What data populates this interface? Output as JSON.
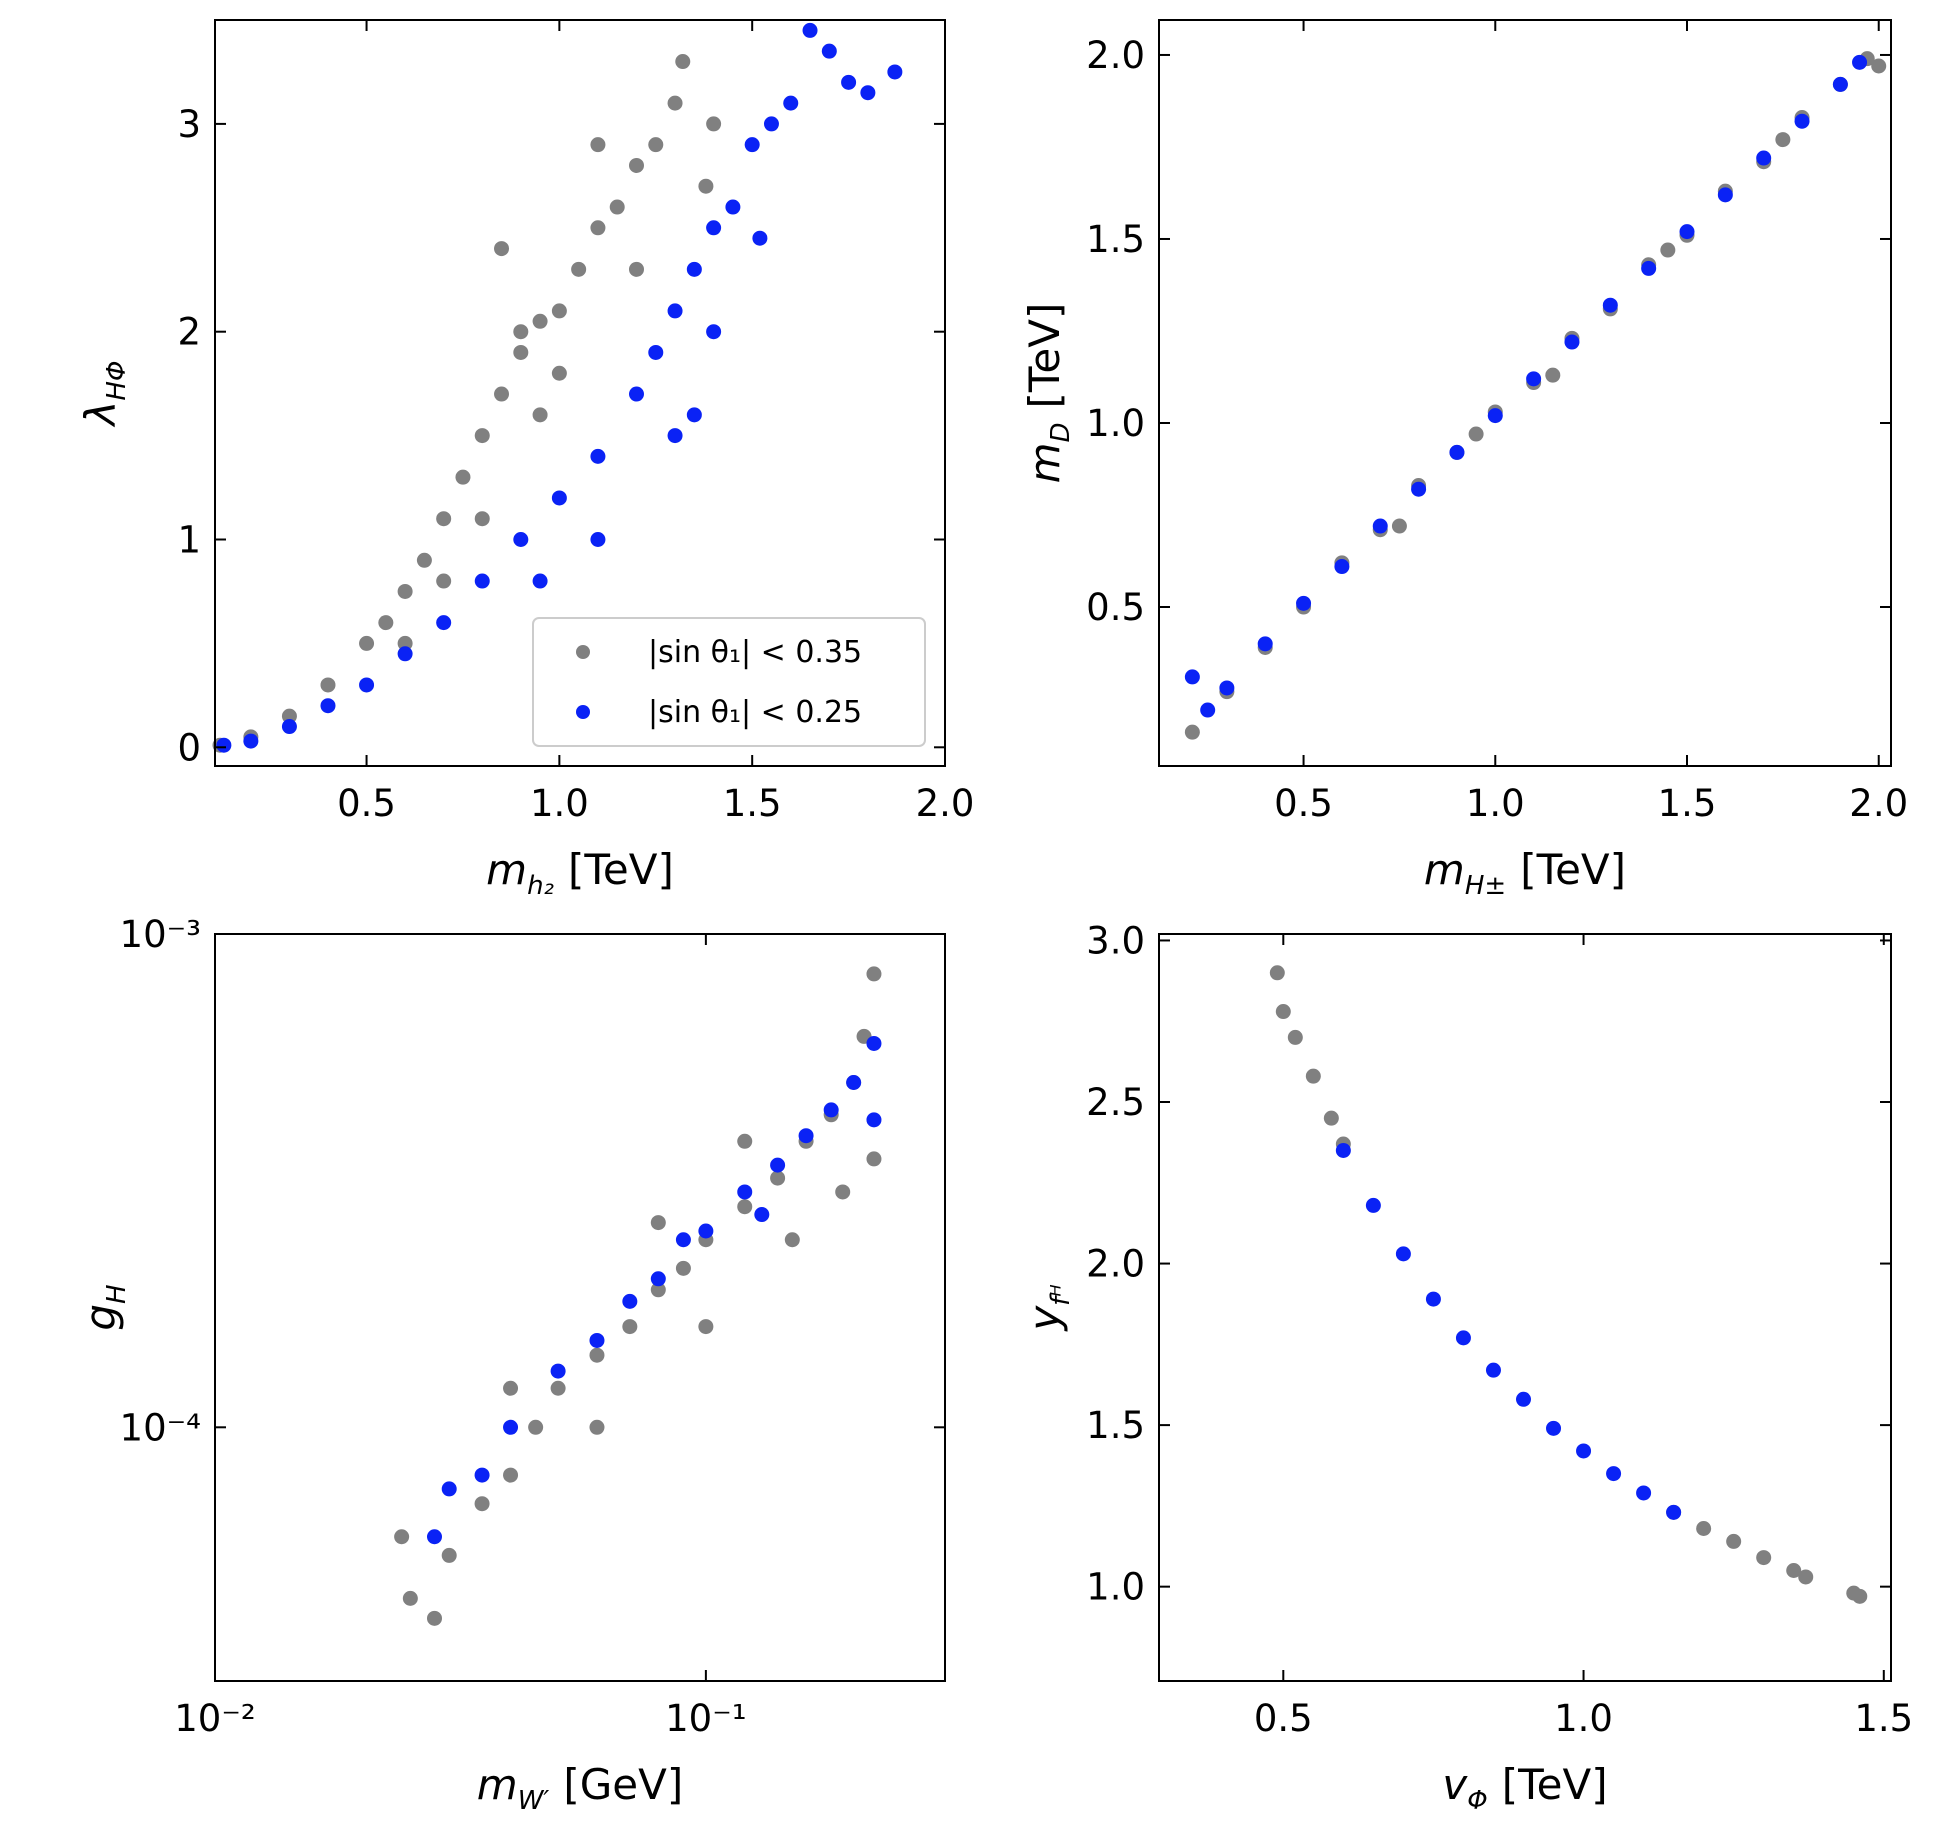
{
  "chart_data": [
    {
      "type": "scatter",
      "xlabel": {
        "text": "m",
        "sub": "h₂",
        "unit": "[TeV]"
      },
      "ylabel": {
        "text": "λ",
        "sub": "HΦ",
        "unit": ""
      },
      "xlim": [
        0.107,
        2.0
      ],
      "ylim": [
        -0.09,
        3.5
      ],
      "xticks": [
        0.5,
        {
          "value": 1,
          "label": "1.0"
        },
        1.5,
        {
          "value": 2,
          "label": "2.0"
        }
      ],
      "yticks": [
        0,
        1,
        2,
        3
      ],
      "legend": "lower right",
      "series": [
        {
          "name": "|sin θ₁| < 0.35",
          "color": "#808080",
          "x": [
            0.12,
            0.2,
            0.3,
            0.4,
            0.5,
            0.55,
            0.6,
            0.65,
            0.7,
            0.75,
            0.8,
            0.85,
            0.9,
            0.95,
            1.0,
            1.05,
            1.1,
            1.15,
            1.2,
            1.25,
            1.3,
            1.32,
            0.85,
            0.9,
            1.1,
            0.7,
            0.8,
            0.95,
            1.0,
            1.2,
            0.6,
            1.4,
            1.38
          ],
          "y": [
            0.01,
            0.05,
            0.15,
            0.3,
            0.5,
            0.6,
            0.75,
            0.9,
            1.1,
            1.3,
            1.5,
            1.7,
            1.9,
            2.05,
            2.1,
            2.3,
            2.5,
            2.6,
            2.8,
            2.9,
            3.1,
            3.3,
            2.4,
            2.0,
            2.9,
            0.8,
            1.1,
            1.6,
            1.8,
            2.3,
            0.5,
            3.0,
            2.7
          ]
        },
        {
          "name": "|sin θ₁| < 0.25",
          "color": "#0a22f5",
          "x": [
            0.13,
            0.2,
            0.3,
            0.4,
            0.5,
            0.6,
            0.7,
            0.8,
            0.9,
            1.0,
            1.1,
            1.2,
            1.25,
            1.3,
            1.35,
            1.4,
            1.45,
            1.5,
            1.55,
            1.6,
            1.65,
            1.7,
            1.75,
            1.8,
            1.87,
            1.4,
            1.3,
            1.1,
            0.95,
            1.52,
            1.35
          ],
          "y": [
            0.01,
            0.03,
            0.1,
            0.2,
            0.3,
            0.45,
            0.6,
            0.8,
            1.0,
            1.2,
            1.4,
            1.7,
            1.9,
            2.1,
            2.3,
            2.5,
            2.6,
            2.9,
            3.0,
            3.1,
            3.45,
            3.35,
            3.2,
            3.15,
            3.25,
            2.0,
            1.5,
            1.0,
            0.8,
            2.45,
            1.6
          ]
        }
      ]
    },
    {
      "type": "scatter",
      "xlabel": {
        "text": "m",
        "sub": "H±",
        "unit": "[TeV]"
      },
      "ylabel": {
        "text": "m",
        "sub": "D",
        "unit": "[TeV]"
      },
      "xlim": [
        0.123,
        2.032
      ],
      "ylim": [
        0.068,
        2.095
      ],
      "xticks": [
        0.5,
        {
          "value": 1,
          "label": "1.0"
        },
        1.5,
        {
          "value": 2,
          "label": "2.0"
        }
      ],
      "yticks": [
        0.5,
        {
          "value": 1,
          "label": "1.0"
        },
        1.5,
        {
          "value": 2,
          "label": "2.0"
        }
      ],
      "series": [
        {
          "color": "#808080",
          "x": [
            0.21,
            0.3,
            0.4,
            0.5,
            0.6,
            0.7,
            0.8,
            0.9,
            1.0,
            1.1,
            1.2,
            1.3,
            1.4,
            1.5,
            1.6,
            1.7,
            1.8,
            1.9,
            1.97,
            2.0,
            0.75,
            0.95,
            1.15,
            1.45,
            1.75
          ],
          "y": [
            0.16,
            0.27,
            0.39,
            0.5,
            0.62,
            0.71,
            0.83,
            0.92,
            1.03,
            1.11,
            1.23,
            1.31,
            1.43,
            1.51,
            1.63,
            1.71,
            1.83,
            1.92,
            1.99,
            1.97,
            0.72,
            0.97,
            1.13,
            1.47,
            1.77
          ]
        },
        {
          "color": "#0a22f5",
          "x": [
            0.21,
            0.25,
            0.3,
            0.4,
            0.5,
            0.6,
            0.7,
            0.8,
            0.9,
            1.0,
            1.1,
            1.2,
            1.3,
            1.4,
            1.5,
            1.6,
            1.7,
            1.8,
            1.9,
            1.95
          ],
          "y": [
            0.31,
            0.22,
            0.28,
            0.4,
            0.51,
            0.61,
            0.72,
            0.82,
            0.92,
            1.02,
            1.12,
            1.22,
            1.32,
            1.42,
            1.52,
            1.62,
            1.72,
            1.82,
            1.92,
            1.98
          ]
        }
      ]
    },
    {
      "type": "scatter",
      "xscale": "log",
      "yscale": "log",
      "xlabel": {
        "text": "m",
        "sub": "W′",
        "unit": "[GeV]"
      },
      "ylabel": {
        "text": "g",
        "sub": "H",
        "unit": ""
      },
      "xlim": [
        0.01,
        0.307
      ],
      "ylim": [
        3.06e-05,
        0.001
      ],
      "xticks": [
        {
          "value": 0.01,
          "label": "10⁻²"
        },
        {
          "value": 0.1,
          "label": "10⁻¹"
        }
      ],
      "yticks": [
        {
          "value": 0.0001,
          "label": "10⁻⁴"
        },
        {
          "value": 0.001,
          "label": "10⁻³"
        }
      ],
      "series": [
        {
          "color": "#808080",
          "x": [
            0.024,
            0.025,
            0.028,
            0.03,
            0.035,
            0.04,
            0.045,
            0.05,
            0.06,
            0.07,
            0.08,
            0.09,
            0.1,
            0.12,
            0.14,
            0.16,
            0.18,
            0.2,
            0.21,
            0.22,
            0.22,
            0.15,
            0.1,
            0.06,
            0.08,
            0.12,
            0.04,
            0.19
          ],
          "y": [
            6e-05,
            4.5e-05,
            4.1e-05,
            5.5e-05,
            7e-05,
            8e-05,
            0.0001,
            0.00012,
            0.00014,
            0.00016,
            0.00019,
            0.00021,
            0.00024,
            0.00028,
            0.00032,
            0.00038,
            0.00043,
            0.0005,
            0.00062,
            0.00083,
            0.00035,
            0.00024,
            0.00016,
            0.0001,
            0.00026,
            0.00038,
            0.00012,
            0.0003
          ]
        },
        {
          "color": "#0a22f5",
          "x": [
            0.028,
            0.03,
            0.035,
            0.04,
            0.05,
            0.06,
            0.07,
            0.08,
            0.1,
            0.12,
            0.14,
            0.16,
            0.18,
            0.2,
            0.22,
            0.22,
            0.13,
            0.09
          ],
          "y": [
            6e-05,
            7.5e-05,
            8e-05,
            0.0001,
            0.00013,
            0.00015,
            0.00018,
            0.0002,
            0.00025,
            0.0003,
            0.00034,
            0.00039,
            0.00044,
            0.0005,
            0.0006,
            0.00042,
            0.00027,
            0.00024
          ]
        }
      ]
    },
    {
      "type": "scatter",
      "xlabel": {
        "text": "v",
        "sub": "Φ",
        "unit": "[TeV]"
      },
      "ylabel": {
        "text": "y",
        "sub": "fᴴ",
        "unit": ""
      },
      "xlim": [
        0.293,
        1.512
      ],
      "ylim": [
        0.708,
        3.02
      ],
      "xticks": [
        0.5,
        {
          "value": 1,
          "label": "1.0"
        },
        1.5
      ],
      "yticks": [
        {
          "value": 1,
          "label": "1.0"
        },
        1.5,
        {
          "value": 2,
          "label": "2.0"
        },
        2.5,
        {
          "value": 3,
          "label": "3.0"
        }
      ],
      "series": [
        {
          "color": "#808080",
          "x": [
            0.49,
            0.5,
            0.52,
            0.55,
            0.58,
            0.6,
            1.15,
            1.2,
            1.25,
            1.3,
            1.35,
            1.37,
            1.45,
            1.46
          ],
          "y": [
            2.9,
            2.78,
            2.7,
            2.58,
            2.45,
            2.37,
            1.23,
            1.18,
            1.14,
            1.09,
            1.05,
            1.03,
            0.98,
            0.97
          ]
        },
        {
          "color": "#0a22f5",
          "x": [
            0.6,
            0.65,
            0.7,
            0.75,
            0.8,
            0.85,
            0.9,
            0.95,
            1.0,
            1.05,
            1.1,
            1.15
          ],
          "y": [
            2.35,
            2.18,
            2.03,
            1.89,
            1.77,
            1.67,
            1.58,
            1.49,
            1.42,
            1.35,
            1.29,
            1.23
          ]
        }
      ]
    }
  ]
}
